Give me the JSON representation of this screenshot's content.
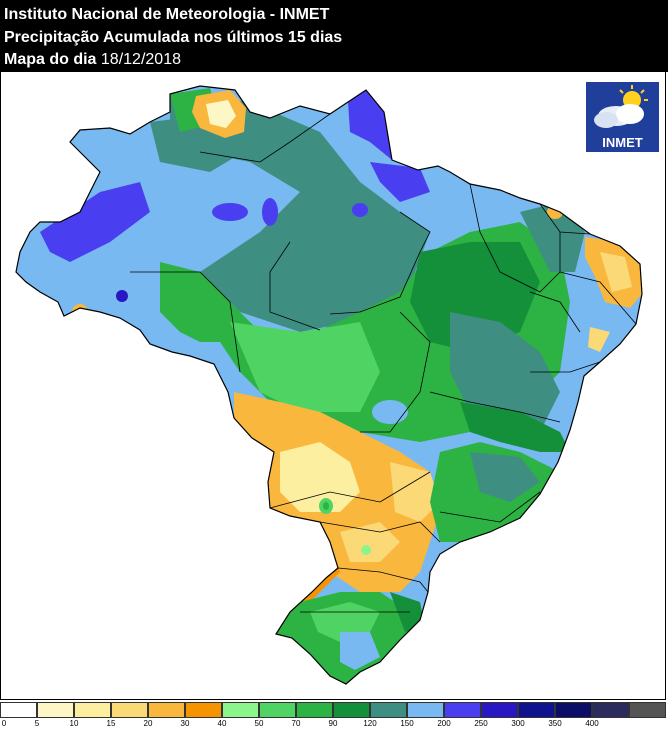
{
  "header": {
    "line1": "Instituto Nacional de Meteorologia - INMET",
    "line2": "Precipitação Acumulada nos últimos 15 dias",
    "line3_label": "Mapa do dia",
    "line3_date": "18/12/2018"
  },
  "logo": {
    "text": "INMET",
    "icon": "sun-cloud-icon"
  },
  "legend": {
    "colors": [
      "#ffffff",
      "#fdf7c6",
      "#fcef9f",
      "#fbd976",
      "#f9b73e",
      "#f59300",
      "#8bf58b",
      "#4fd463",
      "#2db344",
      "#14903a",
      "#3e8f82",
      "#79b9f2",
      "#4a3ff0",
      "#2a17c4",
      "#10138e",
      "#0c0d66",
      "#2b2b5e",
      "#555555"
    ],
    "ticks": [
      "0",
      "5",
      "10",
      "15",
      "20",
      "30",
      "40",
      "50",
      "70",
      "90",
      "120",
      "150",
      "200",
      "250",
      "300",
      "350",
      "400"
    ]
  }
}
